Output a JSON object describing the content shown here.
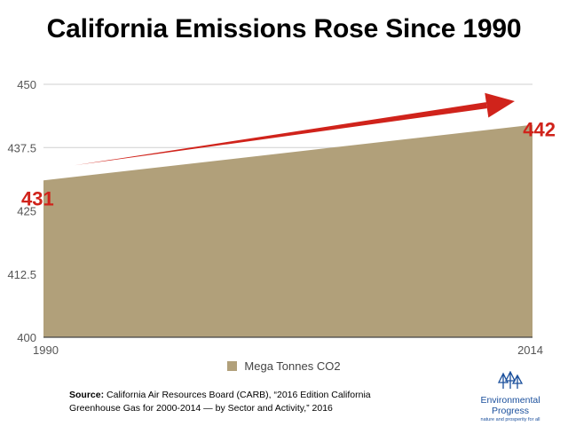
{
  "title": "California Emissions Rose Since 1990",
  "colors": {
    "area": "#b1a07a",
    "arrow": "#d0231b",
    "label": "#d0231b",
    "grid": "#cfcfcf",
    "axis_text": "#555555",
    "logo": "#1a4f9c"
  },
  "chart_data": {
    "type": "area",
    "x": [
      "1990",
      "2014"
    ],
    "series": [
      {
        "name": "Mega Tonnes CO2",
        "values": [
          431,
          442
        ]
      }
    ],
    "ylim": [
      400,
      450
    ],
    "yticks": [
      "450",
      "437.5",
      "425",
      "412.5",
      "400"
    ],
    "xticks": [
      "1990",
      "2014"
    ],
    "grid": true,
    "legend": "bottom-center",
    "annotations": [
      "431",
      "442"
    ]
  },
  "source": {
    "label": "Source:",
    "text": "California Air Resources Board (CARB), “2016 Edition California Greenhouse Gas for 2000-2014 — by Sector and Activity,” 2016"
  },
  "logo": {
    "name": "Environmental Progress",
    "tagline": "nature and prosperity for all",
    "icon": "trees-icon"
  }
}
